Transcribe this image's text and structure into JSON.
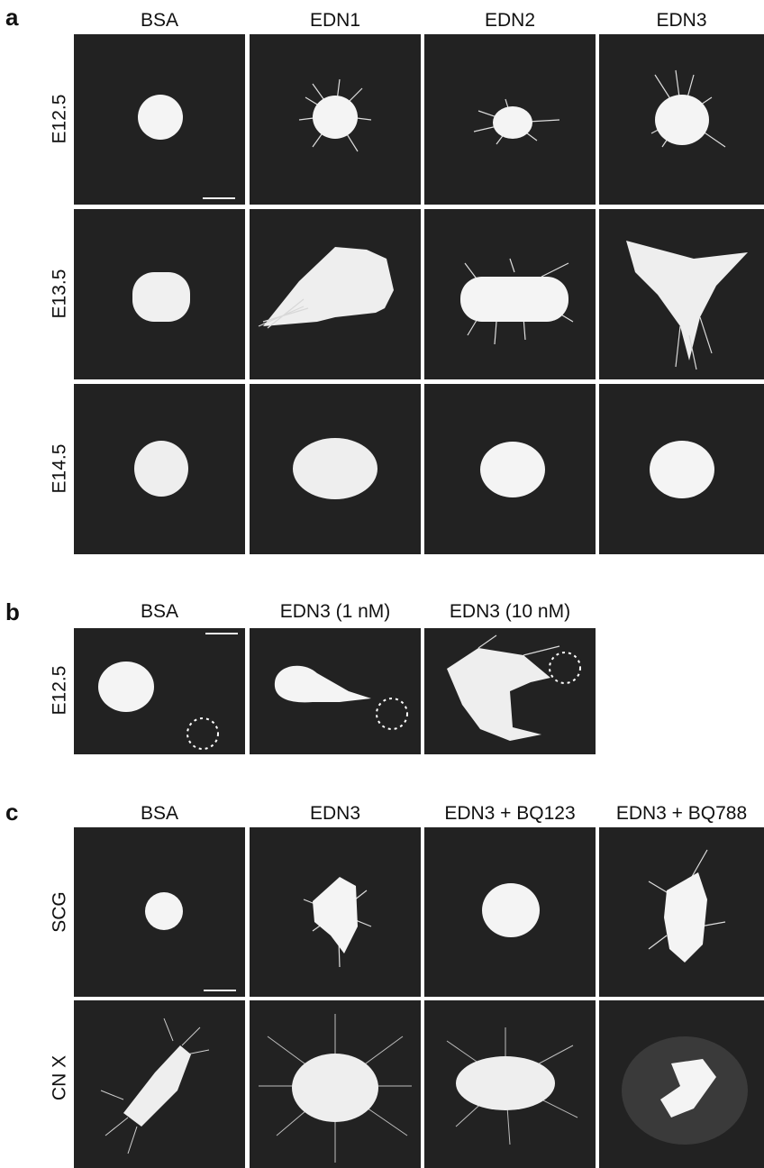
{
  "panel_a": {
    "letter": "a",
    "columns": [
      "BSA",
      "EDN1",
      "EDN2",
      "EDN3"
    ],
    "rows": [
      "E12.5",
      "E13.5",
      "E14.5"
    ]
  },
  "panel_b": {
    "letter": "b",
    "columns": [
      "BSA",
      "EDN3 (1 nM)",
      "EDN3 (10 nM)"
    ],
    "rows": [
      "E12.5"
    ]
  },
  "panel_c": {
    "letter": "c",
    "columns": [
      "BSA",
      "EDN3",
      "EDN3 + BQ123",
      "EDN3 + BQ788"
    ],
    "rows": [
      "SCG",
      "CN X"
    ]
  },
  "colors": {
    "tile_background": "#222222",
    "explant": "#f4f4f4",
    "annotation": "#ffffff"
  }
}
